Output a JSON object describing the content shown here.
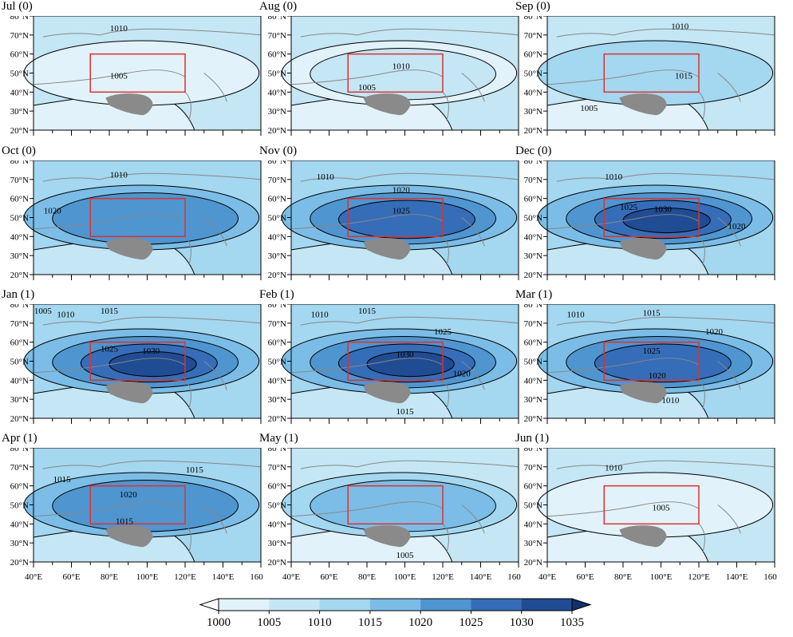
{
  "colorbar": {
    "levels": [
      "1000",
      "1005",
      "1010",
      "1015",
      "1020",
      "1025",
      "1030",
      "1035"
    ],
    "colors": [
      "#ffffff",
      "#e1f2fa",
      "#c4e6f5",
      "#a4d7f0",
      "#7bbde6",
      "#4f95cf",
      "#356db8",
      "#204c94",
      "#152f6b"
    ]
  },
  "lat_ticks": [
    "80°N",
    "70°N",
    "60°N",
    "50°N",
    "40°N",
    "30°N",
    "20°N"
  ],
  "lon_ticks": [
    "40°E",
    "60°E",
    "80°E",
    "100°E",
    "120°E",
    "140°E",
    "160°E"
  ],
  "box": {
    "lon": [
      70,
      120
    ],
    "lat": [
      40,
      60
    ],
    "color": "#e03030"
  },
  "panels": [
    {
      "title": "Jul (0)",
      "bg": 2,
      "core": [
        1
      ],
      "labels": [
        {
          "t": "1010",
          "lon": 85,
          "lat": 72
        },
        {
          "t": "1005",
          "lon": 85,
          "lat": 47
        }
      ]
    },
    {
      "title": "Aug (0)",
      "bg": 2,
      "core": [
        1,
        2
      ],
      "labels": [
        {
          "t": "1010",
          "lon": 98,
          "lat": 52
        },
        {
          "t": "1005",
          "lon": 80,
          "lat": 41
        }
      ]
    },
    {
      "title": "Sep (0)",
      "bg": 2,
      "core": [
        3
      ],
      "labels": [
        {
          "t": "1010",
          "lon": 110,
          "lat": 73
        },
        {
          "t": "1015",
          "lon": 112,
          "lat": 47
        },
        {
          "t": "1005",
          "lon": 62,
          "lat": 30
        }
      ]
    },
    {
      "title": "Oct (0)",
      "bg": 3,
      "core": [
        4,
        5
      ],
      "labels": [
        {
          "t": "1010",
          "lon": 85,
          "lat": 71
        },
        {
          "t": "1020",
          "lon": 50,
          "lat": 52
        }
      ]
    },
    {
      "title": "Nov (0)",
      "bg": 3,
      "core": [
        4,
        5,
        6
      ],
      "labels": [
        {
          "t": "1010",
          "lon": 58,
          "lat": 70
        },
        {
          "t": "1020",
          "lon": 98,
          "lat": 63
        },
        {
          "t": "1025",
          "lon": 98,
          "lat": 52
        }
      ]
    },
    {
      "title": "Dec (0)",
      "bg": 3,
      "core": [
        4,
        5,
        6,
        7
      ],
      "labels": [
        {
          "t": "1010",
          "lon": 75,
          "lat": 70
        },
        {
          "t": "1025",
          "lon": 83,
          "lat": 54
        },
        {
          "t": "1030",
          "lon": 101,
          "lat": 53
        },
        {
          "t": "1020",
          "lon": 140,
          "lat": 44
        }
      ]
    },
    {
      "title": "Jan (1)",
      "bg": 3,
      "core": [
        4,
        5,
        6,
        7
      ],
      "labels": [
        {
          "t": "1005",
          "lon": 45,
          "lat": 75
        },
        {
          "t": "1010",
          "lon": 57,
          "lat": 73
        },
        {
          "t": "1015",
          "lon": 80,
          "lat": 75
        },
        {
          "t": "1025",
          "lon": 80,
          "lat": 55
        },
        {
          "t": "1030",
          "lon": 102,
          "lat": 54
        }
      ]
    },
    {
      "title": "Feb (1)",
      "bg": 3,
      "core": [
        4,
        5,
        6,
        7
      ],
      "labels": [
        {
          "t": "1010",
          "lon": 55,
          "lat": 73
        },
        {
          "t": "1015",
          "lon": 80,
          "lat": 75
        },
        {
          "t": "1025",
          "lon": 120,
          "lat": 64
        },
        {
          "t": "1030",
          "lon": 100,
          "lat": 52
        },
        {
          "t": "1020",
          "lon": 130,
          "lat": 42
        },
        {
          "t": "1015",
          "lon": 100,
          "lat": 22
        }
      ]
    },
    {
      "title": "Mar (1)",
      "bg": 3,
      "core": [
        4,
        5,
        6
      ],
      "labels": [
        {
          "t": "1010",
          "lon": 55,
          "lat": 73
        },
        {
          "t": "1015",
          "lon": 95,
          "lat": 74
        },
        {
          "t": "1020",
          "lon": 128,
          "lat": 64
        },
        {
          "t": "1025",
          "lon": 95,
          "lat": 54
        },
        {
          "t": "1020",
          "lon": 98,
          "lat": 41
        },
        {
          "t": "1010",
          "lon": 105,
          "lat": 28
        }
      ]
    },
    {
      "title": "Apr (1)",
      "bg": 3,
      "core": [
        4,
        5
      ],
      "labels": [
        {
          "t": "1015",
          "lon": 125,
          "lat": 67
        },
        {
          "t": "1015",
          "lon": 55,
          "lat": 62
        },
        {
          "t": "1020",
          "lon": 90,
          "lat": 54
        },
        {
          "t": "1015",
          "lon": 88,
          "lat": 40
        }
      ]
    },
    {
      "title": "May (1)",
      "bg": 2,
      "core": [
        3,
        4
      ],
      "labels": [
        {
          "t": "1005",
          "lon": 100,
          "lat": 22
        }
      ]
    },
    {
      "title": "Jun (1)",
      "bg": 2,
      "core": [
        1
      ],
      "labels": [
        {
          "t": "1010",
          "lon": 75,
          "lat": 68
        },
        {
          "t": "1005",
          "lon": 100,
          "lat": 47
        }
      ]
    }
  ]
}
